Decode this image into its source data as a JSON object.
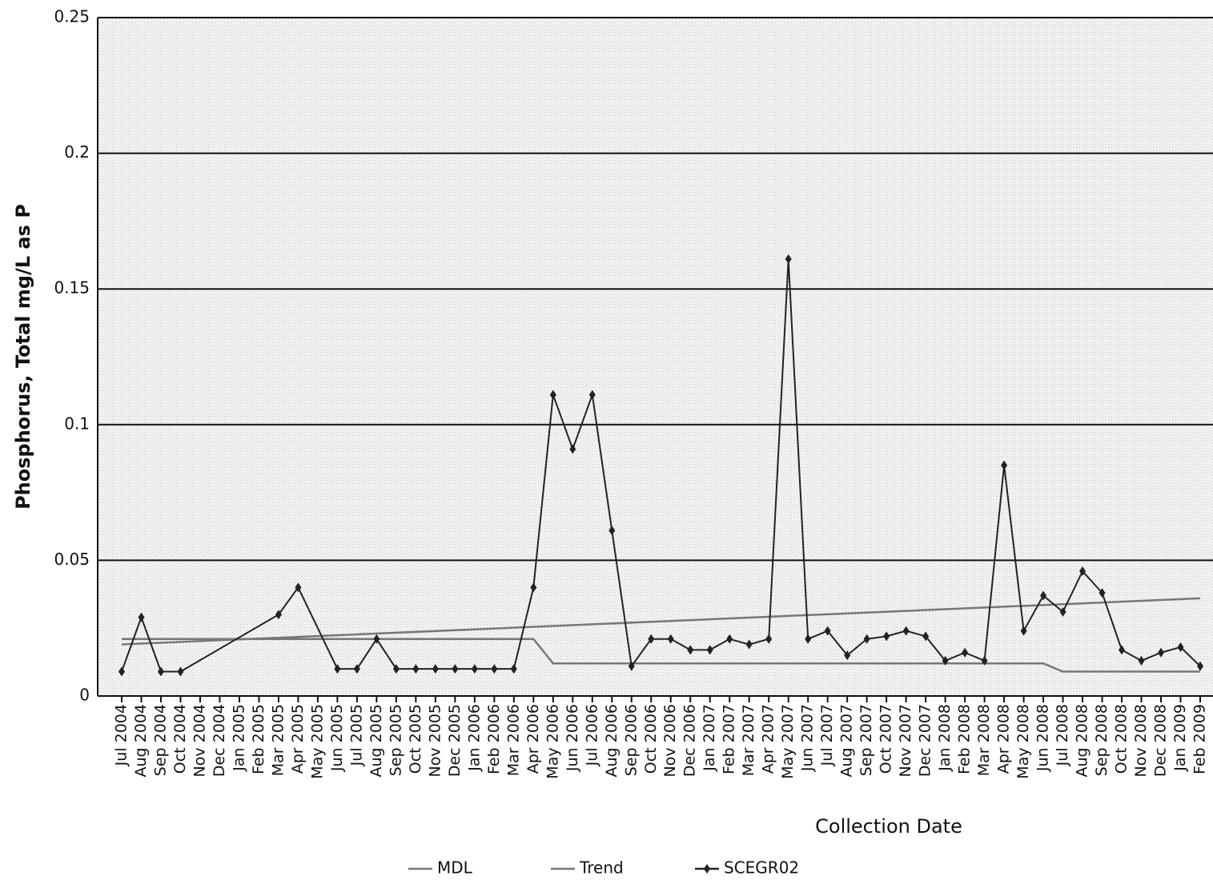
{
  "chart_data": {
    "type": "line",
    "y_label": "Phosphorus, Total   mg/L as P",
    "x_label": "Collection Date",
    "categories": [
      "Jul 2004",
      "Aug 2004",
      "Sep 2004",
      "Oct 2004",
      "Nov 2004",
      "Dec 2004",
      "Jan 2005",
      "Feb 2005",
      "Mar 2005",
      "Apr 2005",
      "May 2005",
      "Jun 2005",
      "Jul 2005",
      "Aug 2005",
      "Sep 2005",
      "Oct 2005",
      "Nov 2005",
      "Dec 2005",
      "Jan 2006",
      "Feb 2006",
      "Mar 2006",
      "Apr 2006",
      "May 2006",
      "Jun 2006",
      "Jul 2006",
      "Aug 2006",
      "Sep 2006",
      "Oct 2006",
      "Nov 2006",
      "Dec 2006",
      "Jan 2007",
      "Feb 2007",
      "Mar 2007",
      "Apr 2007",
      "May 2007",
      "Jun 2007",
      "Jul 2007",
      "Aug 2007",
      "Sep 2007",
      "Oct 2007",
      "Nov 2007",
      "Dec 2007",
      "Jan 2008",
      "Feb 2008",
      "Mar 2008",
      "Apr 2008",
      "May 2008",
      "Jun 2008",
      "Jul 2008",
      "Aug 2008",
      "Sep 2008",
      "Oct 2008",
      "Nov 2008",
      "Dec 2008",
      "Jan 2009",
      "Feb 2009"
    ],
    "series": [
      {
        "name": "MDL",
        "color": "#777777",
        "marker": false,
        "values": [
          0.021,
          0.021,
          0.021,
          0.021,
          0.021,
          0.021,
          0.021,
          0.021,
          0.021,
          0.021,
          0.021,
          0.021,
          0.021,
          0.021,
          0.021,
          0.021,
          0.021,
          0.021,
          0.021,
          0.021,
          0.021,
          0.021,
          0.012,
          0.012,
          0.012,
          0.012,
          0.012,
          0.012,
          0.012,
          0.012,
          0.012,
          0.012,
          0.012,
          0.012,
          0.012,
          0.012,
          0.012,
          0.012,
          0.012,
          0.012,
          0.012,
          0.012,
          0.012,
          0.012,
          0.012,
          0.012,
          0.012,
          0.012,
          0.009,
          0.009,
          0.009,
          0.009,
          0.009,
          0.009,
          0.009,
          0.009
        ]
      },
      {
        "name": "Trend",
        "color": "#777777",
        "marker": false,
        "x": [
          "Jul 2004",
          "Feb 2009"
        ],
        "values": [
          0.019,
          0.036
        ]
      },
      {
        "name": "SCEGR02",
        "color": "#222222",
        "marker": true,
        "x": [
          "Jul 2004",
          "Aug 2004",
          "Sep 2004",
          "Oct 2004",
          "Mar 2005",
          "Apr 2005",
          "Jun 2005",
          "Jul 2005",
          "Aug 2005",
          "Sep 2005",
          "Oct 2005",
          "Nov 2005",
          "Dec 2005",
          "Jan 2006",
          "Feb 2006",
          "Mar 2006",
          "Apr 2006",
          "May 2006",
          "Jun 2006",
          "Jul 2006",
          "Aug 2006",
          "Sep 2006",
          "Oct 2006",
          "Nov 2006",
          "Dec 2006",
          "Jan 2007",
          "Feb 2007",
          "Mar 2007",
          "Apr 2007",
          "May 2007",
          "Jun 2007",
          "Jul 2007",
          "Aug 2007",
          "Sep 2007",
          "Oct 2007",
          "Nov 2007",
          "Dec 2007",
          "Jan 2008",
          "Feb 2008",
          "Mar 2008",
          "Apr 2008",
          "May 2008",
          "Jun 2008",
          "Jul 2008",
          "Aug 2008",
          "Sep 2008",
          "Oct 2008",
          "Nov 2008",
          "Dec 2008",
          "Jan 2009",
          "Feb 2009"
        ],
        "values": [
          0.009,
          0.029,
          0.009,
          0.009,
          0.03,
          0.04,
          0.01,
          0.01,
          0.021,
          0.01,
          0.01,
          0.01,
          0.01,
          0.01,
          0.01,
          0.01,
          0.04,
          0.111,
          0.091,
          0.111,
          0.061,
          0.011,
          0.021,
          0.021,
          0.017,
          0.017,
          0.021,
          0.019,
          0.021,
          0.161,
          0.021,
          0.024,
          0.015,
          0.021,
          0.022,
          0.024,
          0.022,
          0.013,
          0.016,
          0.013,
          0.085,
          0.024,
          0.037,
          0.031,
          0.046,
          0.038,
          0.017,
          0.013,
          0.016,
          0.018,
          0.011
        ]
      }
    ],
    "ylim": [
      0,
      0.25
    ],
    "yticks": [
      0,
      0.05,
      0.1,
      0.15,
      0.2,
      0.25
    ],
    "grid": true,
    "legend": "bottom"
  }
}
